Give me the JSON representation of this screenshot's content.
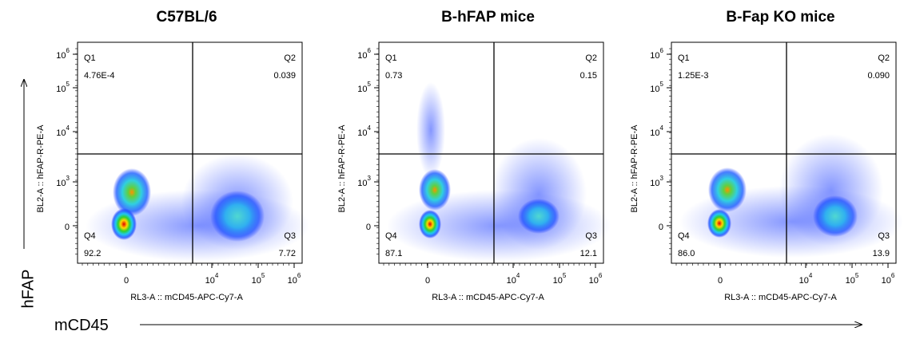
{
  "figure": {
    "panels": [
      {
        "title": "C57BL/6",
        "quadrants": [
          {
            "name": "Q1",
            "value": "4.76E-4"
          },
          {
            "name": "Q2",
            "value": "0.039"
          },
          {
            "name": "Q3",
            "value": "7.72"
          },
          {
            "name": "Q4",
            "value": "92.2"
          }
        ]
      },
      {
        "title": "B-hFAP mice",
        "quadrants": [
          {
            "name": "Q1",
            "value": "0.73"
          },
          {
            "name": "Q2",
            "value": "0.15"
          },
          {
            "name": "Q3",
            "value": "12.1"
          },
          {
            "name": "Q4",
            "value": "87.1"
          }
        ]
      },
      {
        "title": "B-Fap KO mice",
        "quadrants": [
          {
            "name": "Q1",
            "value": "1.25E-3"
          },
          {
            "name": "Q2",
            "value": "0.090"
          },
          {
            "name": "Q3",
            "value": "13.9"
          },
          {
            "name": "Q4",
            "value": "86.0"
          }
        ]
      }
    ],
    "y_axis_label": "BL2-A :: hFAP-R-PE-A",
    "x_axis_label": "RL3-A :: mCD45-APC-Cy7-A",
    "yticks": [
      [
        "10",
        "6"
      ],
      [
        "10",
        "5"
      ],
      [
        "10",
        "4"
      ],
      [
        "10",
        "3"
      ],
      [
        "0"
      ]
    ],
    "xticks": [
      [
        "0"
      ],
      [
        "10",
        "4"
      ],
      [
        "10",
        "5"
      ],
      [
        "10",
        "6"
      ]
    ],
    "y_arrow_label": "hFAP",
    "x_arrow_label": "mCD45"
  }
}
